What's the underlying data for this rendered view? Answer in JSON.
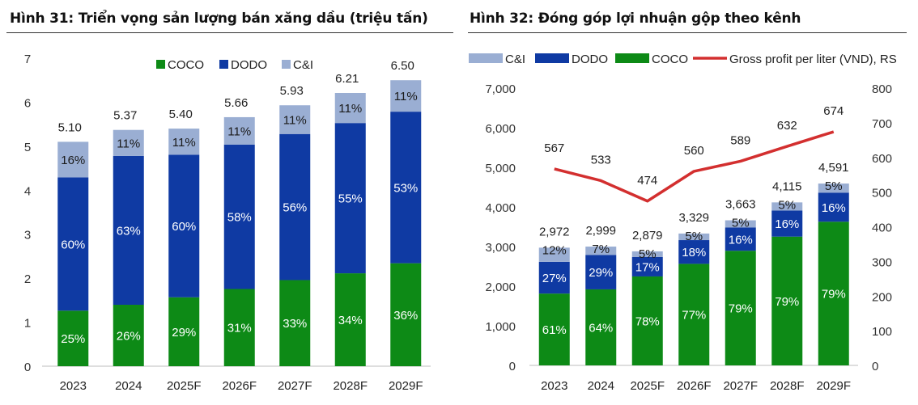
{
  "colors": {
    "coco": "#0d8a16",
    "dodo": "#0f3aa3",
    "ci": "#9aaed3",
    "line": "#d32f2f",
    "label_on_bar": "#ffffff",
    "label_on_ci": "#1a1a1a"
  },
  "chart_data": [
    {
      "type": "bar",
      "stacked": true,
      "title": "Hình 31: Triển vọng sản lượng bán xăng dầu (triệu tấn)",
      "categories": [
        "2023",
        "2024",
        "2025F",
        "2026F",
        "2027F",
        "2028F",
        "2029F"
      ],
      "totals": [
        5.1,
        5.37,
        5.4,
        5.66,
        5.93,
        6.21,
        6.5
      ],
      "total_labels": [
        "5.10",
        "5.37",
        "5.40",
        "5.66",
        "5.93",
        "6.21",
        "6.50"
      ],
      "series": [
        {
          "name": "COCO",
          "color_key": "coco",
          "shares": [
            0.25,
            0.26,
            0.29,
            0.31,
            0.33,
            0.34,
            0.36
          ],
          "labels": [
            "25%",
            "26%",
            "29%",
            "31%",
            "33%",
            "34%",
            "36%"
          ]
        },
        {
          "name": "DODO",
          "color_key": "dodo",
          "shares": [
            0.6,
            0.63,
            0.6,
            0.58,
            0.56,
            0.55,
            0.53
          ],
          "labels": [
            "60%",
            "63%",
            "60%",
            "58%",
            "56%",
            "55%",
            "53%"
          ]
        },
        {
          "name": "C&I",
          "color_key": "ci",
          "shares": [
            0.16,
            0.11,
            0.11,
            0.11,
            0.11,
            0.11,
            0.11
          ],
          "labels": [
            "16%",
            "11%",
            "11%",
            "11%",
            "11%",
            "11%",
            "11%"
          ]
        }
      ],
      "legend": [
        "COCO",
        "DODO",
        "C&I"
      ],
      "legend_position": "top-right",
      "ylim": [
        0,
        7
      ],
      "yticks": [
        "0",
        "1",
        "2",
        "3",
        "4",
        "5",
        "6",
        "7"
      ],
      "grid": false
    },
    {
      "type": "bar",
      "stacked": true,
      "secondary_line": true,
      "title": "Hình 32: Đóng góp lợi nhuận gộp theo kênh",
      "categories": [
        "2023",
        "2024",
        "2025F",
        "2026F",
        "2027F",
        "2028F",
        "2029F"
      ],
      "totals": [
        2972,
        2999,
        2879,
        3329,
        3663,
        4115,
        4591
      ],
      "total_labels": [
        "2,972",
        "2,999",
        "2,879",
        "3,329",
        "3,663",
        "4,115",
        "4,591"
      ],
      "series": [
        {
          "name": "COCO",
          "color_key": "coco",
          "shares": [
            0.61,
            0.64,
            0.78,
            0.77,
            0.79,
            0.79,
            0.79
          ],
          "labels": [
            "61%",
            "64%",
            "78%",
            "77%",
            "79%",
            "79%",
            "79%"
          ]
        },
        {
          "name": "DODO",
          "color_key": "dodo",
          "shares": [
            0.27,
            0.29,
            0.17,
            0.18,
            0.16,
            0.16,
            0.16
          ],
          "labels": [
            "27%",
            "29%",
            "17%",
            "18%",
            "16%",
            "16%",
            "16%"
          ]
        },
        {
          "name": "C&I",
          "color_key": "ci",
          "shares": [
            0.12,
            0.07,
            0.05,
            0.05,
            0.05,
            0.05,
            0.05
          ],
          "labels": [
            "12%",
            "7%",
            "5%",
            "5%",
            "5%",
            "5%",
            "5%"
          ]
        }
      ],
      "line_series": {
        "name": "Gross profit per liter (VND), RS",
        "color_key": "line",
        "values": [
          567,
          533,
          474,
          560,
          589,
          632,
          674
        ],
        "labels": [
          "567",
          "533",
          "474",
          "560",
          "589",
          "632",
          "674"
        ]
      },
      "legend": [
        "C&I",
        "DODO",
        "COCO",
        "Gross profit per liter (VND), RS"
      ],
      "legend_position": "top",
      "ylim": [
        0,
        7000
      ],
      "yticks": [
        "0",
        "1,000",
        "2,000",
        "3,000",
        "4,000",
        "5,000",
        "6,000",
        "7,000"
      ],
      "y2lim": [
        0,
        800
      ],
      "y2ticks": [
        "0",
        "100",
        "200",
        "300",
        "400",
        "500",
        "600",
        "700",
        "800"
      ],
      "grid": false
    }
  ]
}
